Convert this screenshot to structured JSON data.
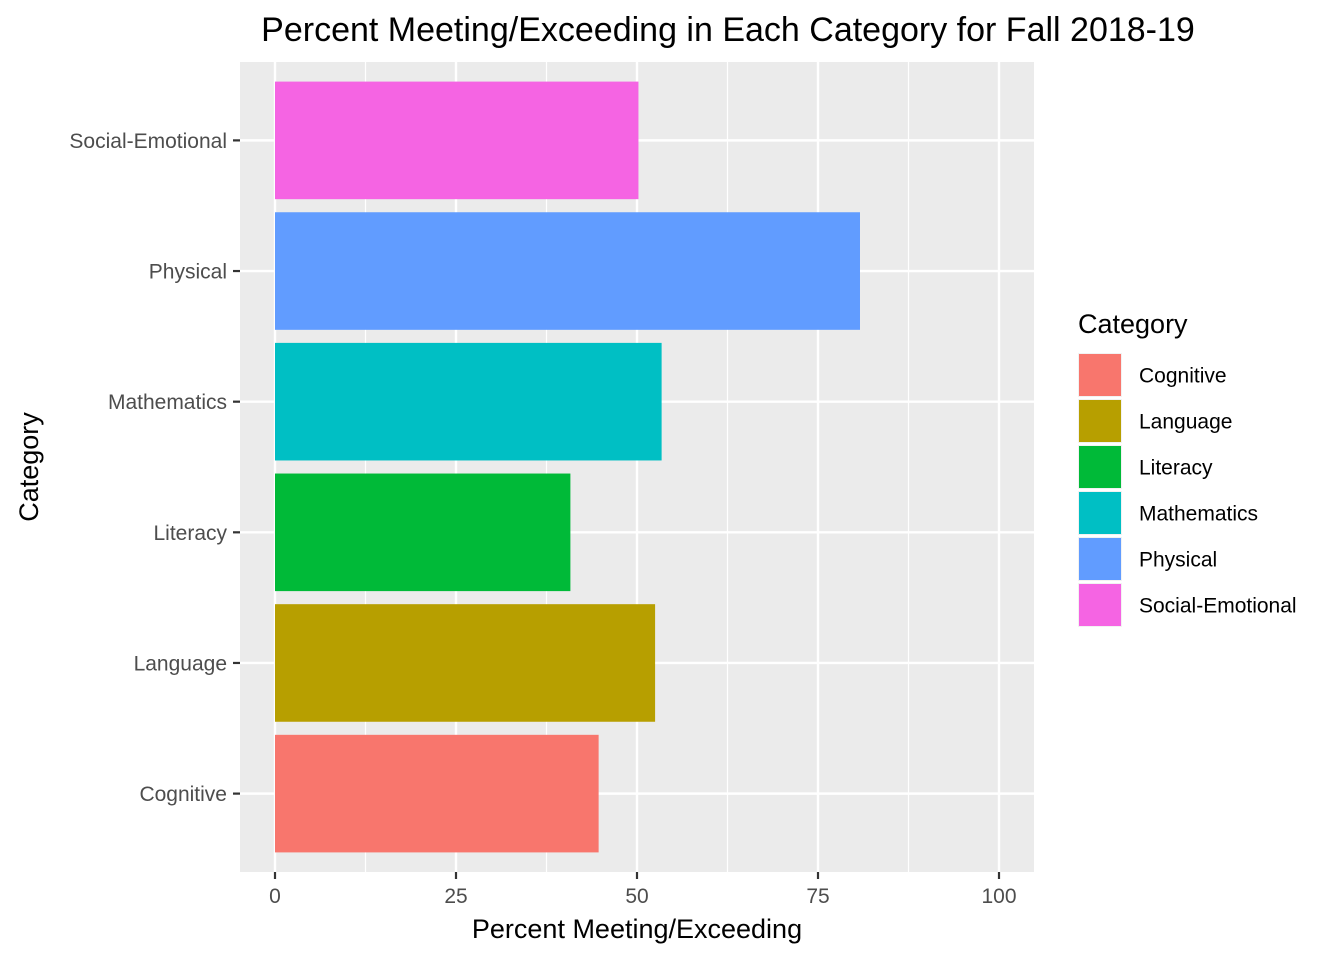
{
  "chart_data": {
    "type": "bar",
    "orientation": "horizontal",
    "title": "Percent Meeting/Exceeding in Each Category for Fall 2018-19",
    "xlabel": "Percent Meeting/Exceeding",
    "ylabel": "Category",
    "xlim": [
      0,
      100
    ],
    "x_ticks": [
      0,
      25,
      50,
      75,
      100
    ],
    "categories": [
      "Cognitive",
      "Language",
      "Literacy",
      "Mathematics",
      "Physical",
      "Social-Emotional"
    ],
    "values": [
      44.7,
      52.5,
      40.8,
      53.4,
      80.8,
      50.2
    ],
    "colors": [
      "#F8766D",
      "#B79F00",
      "#00BA38",
      "#00BFC4",
      "#619CFF",
      "#F564E3"
    ],
    "legend": {
      "title": "Category",
      "placement": "right",
      "entries": [
        "Cognitive",
        "Language",
        "Literacy",
        "Mathematics",
        "Physical",
        "Social-Emotional"
      ]
    },
    "grid": true,
    "panel_background": "#EBEBEB",
    "grid_color": "#FFFFFF"
  }
}
